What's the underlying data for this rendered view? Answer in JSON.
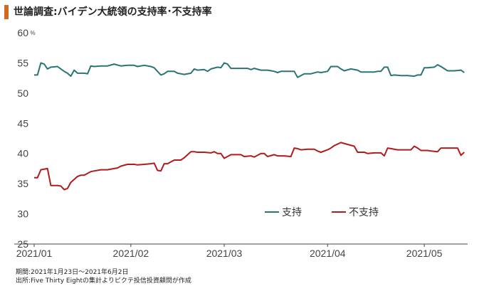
{
  "title": "世論調査:バイデン大統領の支持率･不支持率",
  "colors": {
    "accent": "#d2691e",
    "approve": "#2a7474",
    "disapprove": "#b01c1c",
    "axis": "#444444"
  },
  "footer": {
    "period": "期間:2021年1月23日～2021年6月2日",
    "source": "出所:Five Thirty Eightの集計よりピクテ投信投資顧問が作成"
  },
  "chart_data": {
    "type": "line",
    "y_unit": "%",
    "ylim": [
      25,
      60
    ],
    "yticks": [
      25,
      30,
      35,
      40,
      45,
      50,
      55,
      60
    ],
    "xlim": [
      "2021-01-23",
      "2021-06-02"
    ],
    "xticks": [
      {
        "date": "2021-01-23",
        "label": "2021/01"
      },
      {
        "date": "2021-02-21",
        "label": "2021/02"
      },
      {
        "date": "2021-03-21",
        "label": "2021/03"
      },
      {
        "date": "2021-04-21",
        "label": "2021/04"
      },
      {
        "date": "2021-05-20",
        "label": "2021/05"
      }
    ],
    "grid": false,
    "legend_position": "bottom-right",
    "series": [
      {
        "name": "支持",
        "color": "#2a7474",
        "points": [
          [
            "2021-01-23",
            53.0
          ],
          [
            "2021-01-24",
            53.0
          ],
          [
            "2021-01-25",
            55.0
          ],
          [
            "2021-01-26",
            54.8
          ],
          [
            "2021-01-27",
            54.0
          ],
          [
            "2021-01-28",
            54.3
          ],
          [
            "2021-01-30",
            54.4
          ],
          [
            "2021-02-01",
            53.6
          ],
          [
            "2021-02-02",
            53.3
          ],
          [
            "2021-02-03",
            52.8
          ],
          [
            "2021-02-04",
            53.8
          ],
          [
            "2021-02-05",
            53.3
          ],
          [
            "2021-02-07",
            53.3
          ],
          [
            "2021-02-08",
            53.2
          ],
          [
            "2021-02-09",
            54.5
          ],
          [
            "2021-02-10",
            54.4
          ],
          [
            "2021-02-12",
            54.5
          ],
          [
            "2021-02-14",
            54.5
          ],
          [
            "2021-02-16",
            54.8
          ],
          [
            "2021-02-18",
            54.5
          ],
          [
            "2021-02-20",
            54.6
          ],
          [
            "2021-02-22",
            54.6
          ],
          [
            "2021-02-23",
            54.4
          ],
          [
            "2021-02-25",
            54.6
          ],
          [
            "2021-02-27",
            54.4
          ],
          [
            "2021-02-28",
            54.2
          ],
          [
            "2021-03-01",
            53.6
          ],
          [
            "2021-03-02",
            53.0
          ],
          [
            "2021-03-03",
            53.2
          ],
          [
            "2021-03-04",
            53.6
          ],
          [
            "2021-03-06",
            53.6
          ],
          [
            "2021-03-07",
            53.3
          ],
          [
            "2021-03-09",
            53.1
          ],
          [
            "2021-03-11",
            53.3
          ],
          [
            "2021-03-12",
            54.0
          ],
          [
            "2021-03-13",
            53.8
          ],
          [
            "2021-03-15",
            53.9
          ],
          [
            "2021-03-16",
            53.6
          ],
          [
            "2021-03-17",
            54.0
          ],
          [
            "2021-03-19",
            54.3
          ],
          [
            "2021-03-20",
            54.2
          ],
          [
            "2021-03-21",
            55.0
          ],
          [
            "2021-03-22",
            54.8
          ],
          [
            "2021-03-23",
            54.1
          ],
          [
            "2021-03-26",
            54.1
          ],
          [
            "2021-03-28",
            54.1
          ],
          [
            "2021-03-29",
            53.9
          ],
          [
            "2021-03-30",
            54.1
          ],
          [
            "2021-04-01",
            53.8
          ],
          [
            "2021-04-03",
            53.8
          ],
          [
            "2021-04-05",
            53.6
          ],
          [
            "2021-04-06",
            53.4
          ],
          [
            "2021-04-07",
            53.6
          ],
          [
            "2021-04-09",
            53.6
          ],
          [
            "2021-04-11",
            53.6
          ],
          [
            "2021-04-12",
            52.6
          ],
          [
            "2021-04-13",
            52.9
          ],
          [
            "2021-04-14",
            53.2
          ],
          [
            "2021-04-16",
            53.2
          ],
          [
            "2021-04-18",
            53.5
          ],
          [
            "2021-04-19",
            53.4
          ],
          [
            "2021-04-21",
            53.6
          ],
          [
            "2021-04-22",
            54.4
          ],
          [
            "2021-04-24",
            54.4
          ],
          [
            "2021-04-25",
            54.0
          ],
          [
            "2021-04-26",
            53.7
          ],
          [
            "2021-04-28",
            54.0
          ],
          [
            "2021-04-30",
            53.8
          ],
          [
            "2021-05-01",
            53.5
          ],
          [
            "2021-05-03",
            53.5
          ],
          [
            "2021-05-05",
            53.5
          ],
          [
            "2021-05-06",
            53.6
          ],
          [
            "2021-05-07",
            53.6
          ],
          [
            "2021-05-08",
            54.3
          ],
          [
            "2021-05-09",
            54.3
          ],
          [
            "2021-05-10",
            52.9
          ],
          [
            "2021-05-11",
            53.0
          ],
          [
            "2021-05-13",
            52.9
          ],
          [
            "2021-05-15",
            52.9
          ],
          [
            "2021-05-17",
            52.8
          ],
          [
            "2021-05-18",
            53.0
          ],
          [
            "2021-05-19",
            53.0
          ],
          [
            "2021-05-20",
            54.2
          ],
          [
            "2021-05-21",
            54.2
          ],
          [
            "2021-05-23",
            54.3
          ],
          [
            "2021-05-24",
            54.7
          ],
          [
            "2021-05-25",
            54.4
          ],
          [
            "2021-05-27",
            53.7
          ],
          [
            "2021-05-29",
            53.7
          ],
          [
            "2021-05-31",
            53.8
          ],
          [
            "2021-06-01",
            53.4
          ]
        ]
      },
      {
        "name": "不支持",
        "color": "#b01c1c",
        "points": [
          [
            "2021-01-23",
            36.0
          ],
          [
            "2021-01-24",
            36.0
          ],
          [
            "2021-01-25",
            37.3
          ],
          [
            "2021-01-27",
            37.5
          ],
          [
            "2021-01-28",
            34.7
          ],
          [
            "2021-01-30",
            34.7
          ],
          [
            "2021-01-31",
            34.6
          ],
          [
            "2021-02-01",
            34.0
          ],
          [
            "2021-02-02",
            34.2
          ],
          [
            "2021-02-03",
            35.2
          ],
          [
            "2021-02-05",
            36.2
          ],
          [
            "2021-02-06",
            36.4
          ],
          [
            "2021-02-07",
            36.4
          ],
          [
            "2021-02-09",
            37.0
          ],
          [
            "2021-02-10",
            37.1
          ],
          [
            "2021-02-12",
            37.3
          ],
          [
            "2021-02-14",
            37.3
          ],
          [
            "2021-02-16",
            37.5
          ],
          [
            "2021-02-17",
            37.6
          ],
          [
            "2021-02-18",
            37.9
          ],
          [
            "2021-02-20",
            38.2
          ],
          [
            "2021-02-22",
            38.2
          ],
          [
            "2021-02-23",
            38.1
          ],
          [
            "2021-02-25",
            38.2
          ],
          [
            "2021-02-27",
            38.3
          ],
          [
            "2021-02-28",
            38.4
          ],
          [
            "2021-03-01",
            37.2
          ],
          [
            "2021-03-02",
            37.1
          ],
          [
            "2021-03-03",
            38.3
          ],
          [
            "2021-03-04",
            38.3
          ],
          [
            "2021-03-06",
            38.9
          ],
          [
            "2021-03-08",
            38.9
          ],
          [
            "2021-03-09",
            39.3
          ],
          [
            "2021-03-11",
            40.3
          ],
          [
            "2021-03-12",
            40.3
          ],
          [
            "2021-03-13",
            40.2
          ],
          [
            "2021-03-15",
            40.2
          ],
          [
            "2021-03-17",
            40.1
          ],
          [
            "2021-03-18",
            40.3
          ],
          [
            "2021-03-19",
            40.0
          ],
          [
            "2021-03-20",
            40.0
          ],
          [
            "2021-03-21",
            39.2
          ],
          [
            "2021-03-22",
            39.5
          ],
          [
            "2021-03-23",
            39.8
          ],
          [
            "2021-03-26",
            39.8
          ],
          [
            "2021-03-27",
            39.5
          ],
          [
            "2021-03-29",
            39.6
          ],
          [
            "2021-03-30",
            39.4
          ],
          [
            "2021-04-01",
            40.0
          ],
          [
            "2021-04-02",
            40.0
          ],
          [
            "2021-04-03",
            39.5
          ],
          [
            "2021-04-05",
            39.8
          ],
          [
            "2021-04-06",
            39.6
          ],
          [
            "2021-04-08",
            39.6
          ],
          [
            "2021-04-10",
            39.5
          ],
          [
            "2021-04-11",
            40.9
          ],
          [
            "2021-04-12",
            40.8
          ],
          [
            "2021-04-13",
            40.6
          ],
          [
            "2021-04-15",
            40.7
          ],
          [
            "2021-04-17",
            40.7
          ],
          [
            "2021-04-18",
            40.4
          ],
          [
            "2021-04-19",
            40.2
          ],
          [
            "2021-04-21",
            40.6
          ],
          [
            "2021-04-22",
            40.9
          ],
          [
            "2021-04-23",
            41.3
          ],
          [
            "2021-04-25",
            41.8
          ],
          [
            "2021-04-27",
            41.5
          ],
          [
            "2021-04-29",
            41.2
          ],
          [
            "2021-04-30",
            40.2
          ],
          [
            "2021-05-02",
            40.2
          ],
          [
            "2021-05-03",
            40.0
          ],
          [
            "2021-05-05",
            40.1
          ],
          [
            "2021-05-07",
            40.1
          ],
          [
            "2021-05-08",
            39.6
          ],
          [
            "2021-05-09",
            40.9
          ],
          [
            "2021-05-10",
            40.8
          ],
          [
            "2021-05-12",
            40.6
          ],
          [
            "2021-05-14",
            40.6
          ],
          [
            "2021-05-16",
            40.6
          ],
          [
            "2021-05-17",
            41.2
          ],
          [
            "2021-05-18",
            40.9
          ],
          [
            "2021-05-19",
            40.5
          ],
          [
            "2021-05-21",
            40.5
          ],
          [
            "2021-05-22",
            40.4
          ],
          [
            "2021-05-24",
            40.3
          ],
          [
            "2021-05-25",
            40.9
          ],
          [
            "2021-05-28",
            40.9
          ],
          [
            "2021-05-30",
            40.9
          ],
          [
            "2021-05-31",
            39.7
          ],
          [
            "2021-06-01",
            40.2
          ]
        ]
      }
    ]
  }
}
